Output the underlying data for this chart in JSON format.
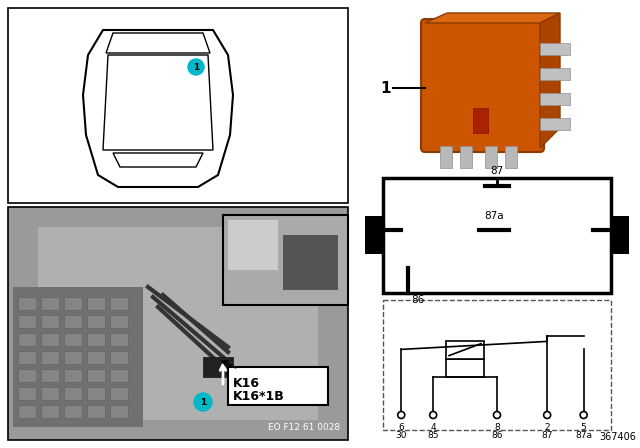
{
  "bg_color": "#ffffff",
  "part_number": "367406",
  "eo_number": "EO F12 61 0028",
  "teal_color": "#00B8C8",
  "orange_relay_color": "#CC5500",
  "orange_relay_dark": "#993300",
  "pin_labels": [
    "87",
    "87a",
    "85",
    "30",
    "86"
  ],
  "circuit_pin_nums": [
    "6",
    "4",
    "8",
    "2",
    "5"
  ],
  "circuit_pin_names": [
    "30",
    "85",
    "86",
    "87",
    "87a"
  ]
}
